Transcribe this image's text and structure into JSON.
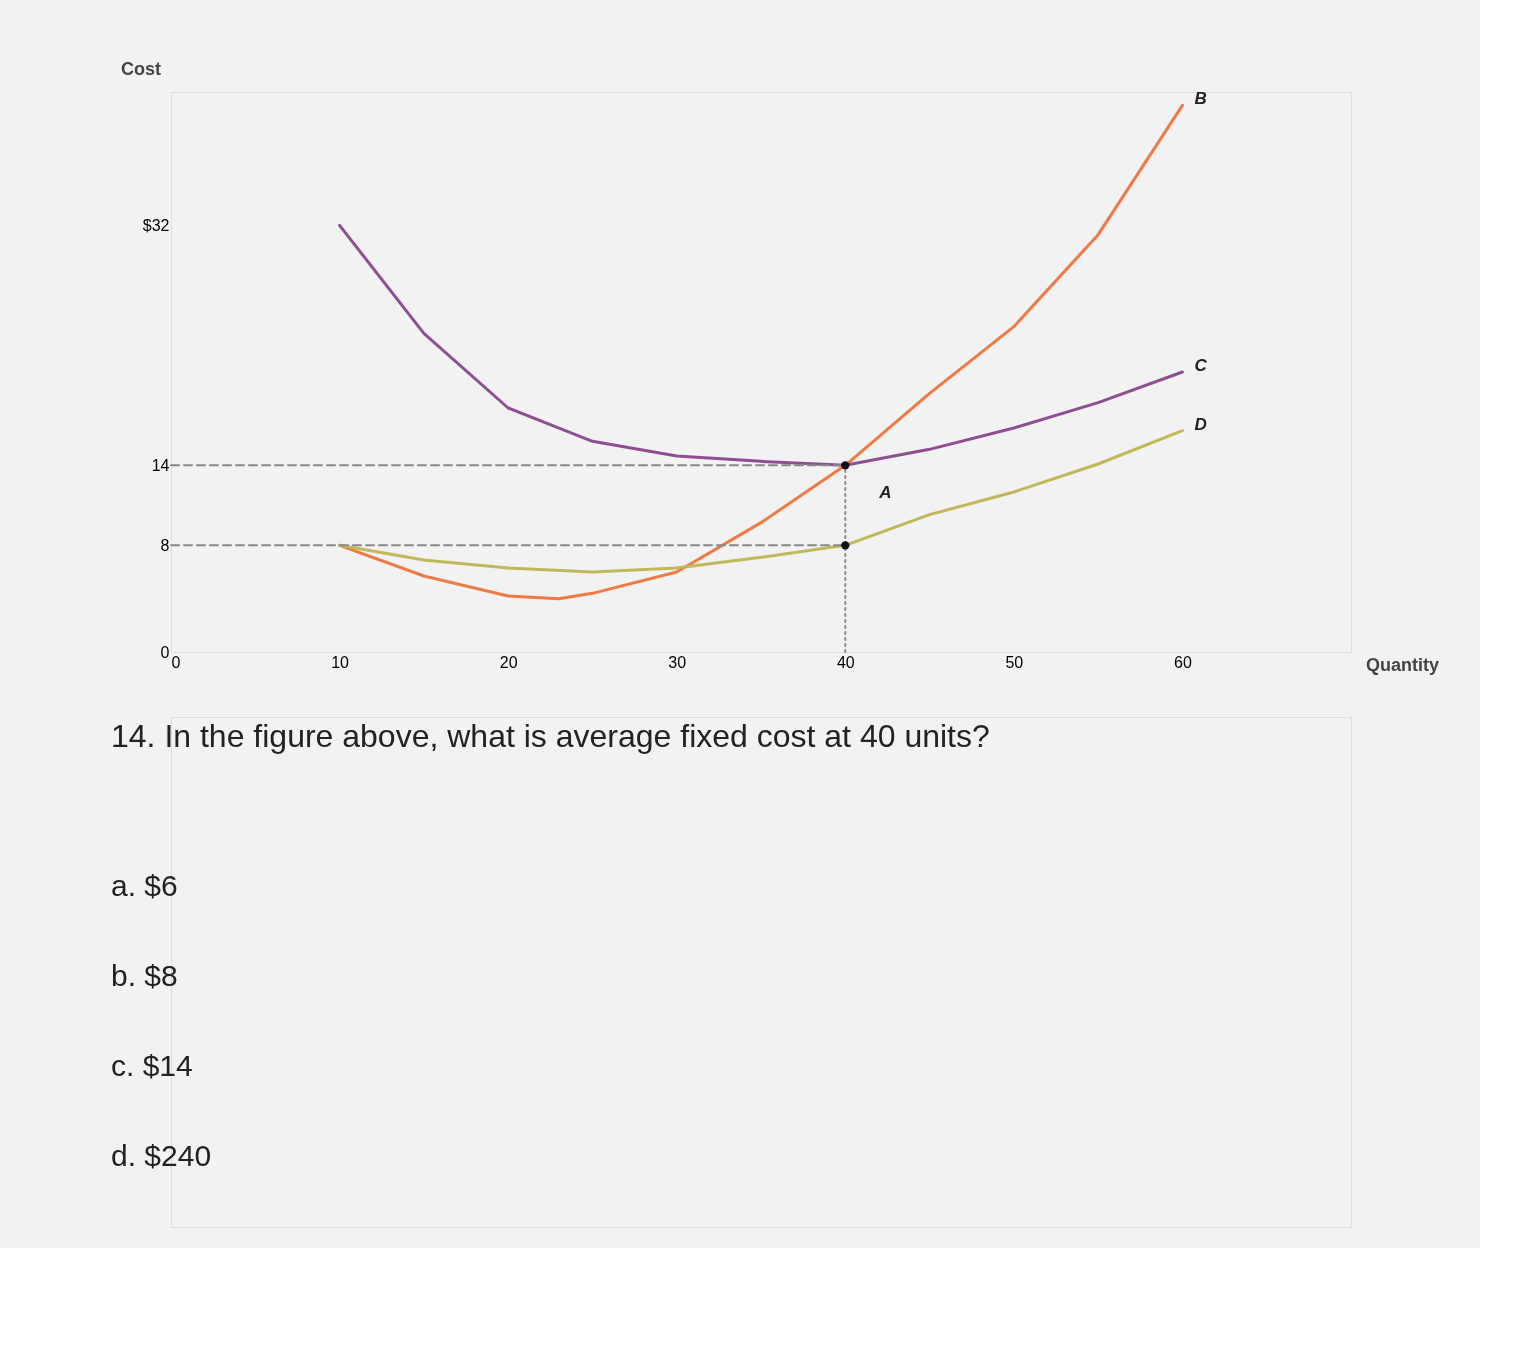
{
  "chart_data": {
    "type": "line",
    "xlabel": "Quantity",
    "ylabel": "Cost",
    "xlim": [
      0,
      70
    ],
    "ylim": [
      0,
      42
    ],
    "xticks": [
      0,
      10,
      20,
      30,
      40,
      50,
      60
    ],
    "yticks": [
      0,
      8,
      14,
      {
        "value": 32,
        "label": "$32"
      }
    ],
    "grid": false,
    "marker": "none",
    "series": [
      {
        "name": "B",
        "color": "#f07a45",
        "x": [
          10,
          15,
          20,
          23,
          25,
          30,
          35,
          40,
          45,
          50,
          55,
          60
        ],
        "values": [
          8,
          5.7,
          4.2,
          4.0,
          4.4,
          6.0,
          9.7,
          14,
          19.4,
          24.4,
          31.3,
          41
        ]
      },
      {
        "name": "C",
        "color": "#8e4f92",
        "x": [
          10,
          15,
          20,
          25,
          30,
          35,
          40,
          45,
          50,
          55,
          60
        ],
        "values": [
          32,
          23.9,
          18.3,
          15.8,
          14.7,
          14.3,
          14,
          15.2,
          16.8,
          18.7,
          21
        ]
      },
      {
        "name": "D",
        "color": "#c2b85a",
        "x": [
          10,
          15,
          20,
          25,
          30,
          35,
          40,
          45,
          50,
          55,
          60
        ],
        "values": [
          8,
          6.9,
          6.3,
          6.0,
          6.3,
          7.1,
          8,
          10.3,
          12.0,
          14.1,
          16.6
        ]
      },
      {
        "type": "line",
        "line_style": "dashed",
        "color": "#888888",
        "x": [
          0,
          40
        ],
        "values": [
          14,
          14
        ]
      },
      {
        "type": "line",
        "line_style": "dashed",
        "color": "#888888",
        "x": [
          0,
          40
        ],
        "values": [
          8,
          8
        ]
      },
      {
        "type": "line",
        "line_style": "dotted",
        "color": "#888888",
        "x": [
          40,
          40
        ],
        "values": [
          0,
          14
        ]
      },
      {
        "type": "scatter",
        "marker": "circle",
        "color": "#111111",
        "x": [
          40,
          40
        ],
        "values": [
          14,
          8
        ]
      }
    ],
    "annotations": [
      {
        "text": "A",
        "x": 40,
        "y": 11
      },
      "14. In the figure above, what is average fixed cost at 40 units?",
      "a. $6",
      "b. $8",
      "c. $14",
      "d. $240"
    ]
  }
}
